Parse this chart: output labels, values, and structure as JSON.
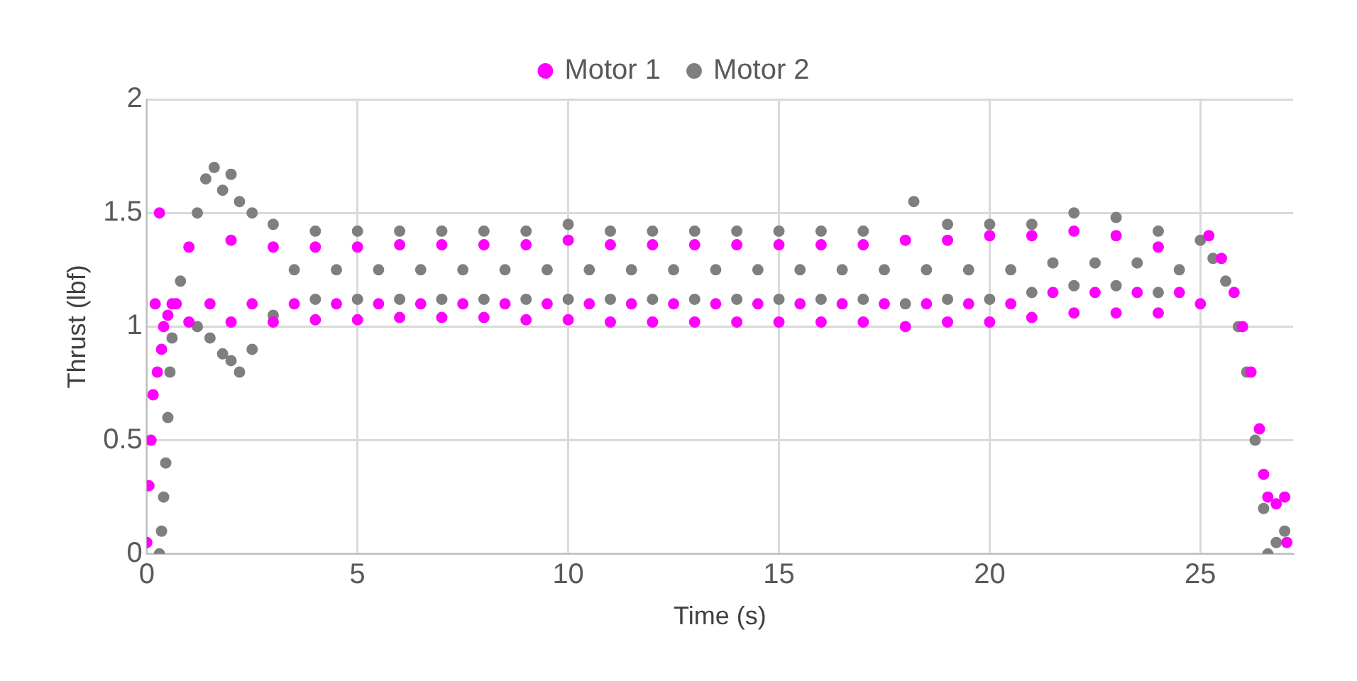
{
  "chart_data": {
    "type": "scatter",
    "xlabel": "Time (s)",
    "ylabel": "Thrust (lbf)",
    "xlim": [
      0,
      27.2
    ],
    "xticks": [
      0,
      5,
      10,
      15,
      20,
      25
    ],
    "ylim": [
      0,
      2
    ],
    "yticks": [
      0,
      0.5,
      1,
      1.5,
      2
    ],
    "grid": true,
    "legend": "top",
    "marker": "circle",
    "series": [
      {
        "name": "Motor 1",
        "color": "#ff00ff",
        "x": [
          0,
          0.05,
          0.1,
          0.15,
          0.2,
          0.25,
          0.3,
          0.35,
          0.4,
          0.5,
          0.6,
          0.7,
          1,
          1,
          1.5,
          2,
          2,
          2.5,
          3,
          3,
          3.5,
          4,
          4,
          4.5,
          5,
          5,
          5.5,
          6,
          6,
          6.5,
          7,
          7,
          7.5,
          8,
          8,
          8.5,
          9,
          9,
          9.5,
          10,
          10,
          10.5,
          11,
          11,
          11.5,
          12,
          12,
          12.5,
          13,
          13,
          13.5,
          14,
          14,
          14.5,
          15,
          15,
          15.5,
          16,
          16,
          16.5,
          17,
          17,
          17.5,
          18,
          18,
          18.5,
          19,
          19,
          19.5,
          20,
          20,
          20.5,
          21,
          21,
          21.5,
          22,
          22,
          22.5,
          23,
          23,
          23.5,
          24,
          24,
          24.5,
          25,
          25.2,
          25.5,
          25.8,
          26,
          26.2,
          26.4,
          26.5,
          26.6,
          26.8,
          27,
          27.05
        ],
        "values": [
          0.05,
          0.3,
          0.5,
          0.7,
          1.1,
          0.8,
          1.5,
          0.9,
          1,
          1.05,
          1.1,
          1.1,
          1.02,
          1.35,
          1.1,
          1.02,
          1.38,
          1.1,
          1.02,
          1.35,
          1.1,
          1.03,
          1.35,
          1.1,
          1.03,
          1.35,
          1.1,
          1.04,
          1.36,
          1.1,
          1.04,
          1.36,
          1.1,
          1.04,
          1.36,
          1.1,
          1.03,
          1.36,
          1.1,
          1.03,
          1.38,
          1.1,
          1.02,
          1.36,
          1.1,
          1.02,
          1.36,
          1.1,
          1.02,
          1.36,
          1.1,
          1.02,
          1.36,
          1.1,
          1.02,
          1.36,
          1.1,
          1.02,
          1.36,
          1.1,
          1.02,
          1.36,
          1.1,
          1,
          1.38,
          1.1,
          1.02,
          1.38,
          1.1,
          1.02,
          1.4,
          1.1,
          1.04,
          1.4,
          1.15,
          1.06,
          1.42,
          1.15,
          1.06,
          1.4,
          1.15,
          1.06,
          1.35,
          1.15,
          1.1,
          1.4,
          1.3,
          1.15,
          1,
          0.8,
          0.55,
          0.35,
          0.25,
          0.22,
          0.25,
          0.05
        ]
      },
      {
        "name": "Motor 2",
        "color": "#7f7f7f",
        "x": [
          0.3,
          0.35,
          0.4,
          0.45,
          0.5,
          0.55,
          0.6,
          0.8,
          1.2,
          1.4,
          1.6,
          1.8,
          2,
          2.2,
          2.5,
          1.2,
          1.5,
          1.8,
          2,
          2.2,
          2.5,
          3,
          3,
          3.5,
          4,
          4,
          4.5,
          5,
          5,
          5.5,
          6,
          6,
          6.5,
          7,
          7,
          7.5,
          8,
          8,
          8.5,
          9,
          9,
          9.5,
          10,
          10,
          10.5,
          11,
          11,
          11.5,
          12,
          12,
          12.5,
          13,
          13,
          13.5,
          14,
          14,
          14.5,
          15,
          15,
          15.5,
          16,
          16,
          16.5,
          17,
          17,
          17.5,
          18,
          18.2,
          18.5,
          19,
          19,
          19.5,
          20,
          20,
          20.5,
          21,
          21,
          21.5,
          22,
          22,
          22.5,
          23,
          23,
          23.5,
          24,
          24,
          24.5,
          25,
          25.3,
          25.6,
          25.9,
          26.1,
          26.3,
          26.5,
          26.6,
          26.8,
          27
        ],
        "values": [
          0,
          0.1,
          0.25,
          0.4,
          0.6,
          0.8,
          0.95,
          1.2,
          1.5,
          1.65,
          1.7,
          1.6,
          1.67,
          1.55,
          1.5,
          1,
          0.95,
          0.88,
          0.85,
          0.8,
          0.9,
          1.05,
          1.45,
          1.25,
          1.12,
          1.42,
          1.25,
          1.12,
          1.42,
          1.25,
          1.12,
          1.42,
          1.25,
          1.12,
          1.42,
          1.25,
          1.12,
          1.42,
          1.25,
          1.12,
          1.42,
          1.25,
          1.12,
          1.45,
          1.25,
          1.12,
          1.42,
          1.25,
          1.12,
          1.42,
          1.25,
          1.12,
          1.42,
          1.25,
          1.12,
          1.42,
          1.25,
          1.12,
          1.42,
          1.25,
          1.12,
          1.42,
          1.25,
          1.12,
          1.42,
          1.25,
          1.1,
          1.55,
          1.25,
          1.12,
          1.45,
          1.25,
          1.12,
          1.45,
          1.25,
          1.15,
          1.45,
          1.28,
          1.18,
          1.5,
          1.28,
          1.18,
          1.48,
          1.28,
          1.15,
          1.42,
          1.25,
          1.38,
          1.3,
          1.2,
          1,
          0.8,
          0.5,
          0.2,
          0,
          0.05,
          0.1
        ]
      }
    ]
  }
}
